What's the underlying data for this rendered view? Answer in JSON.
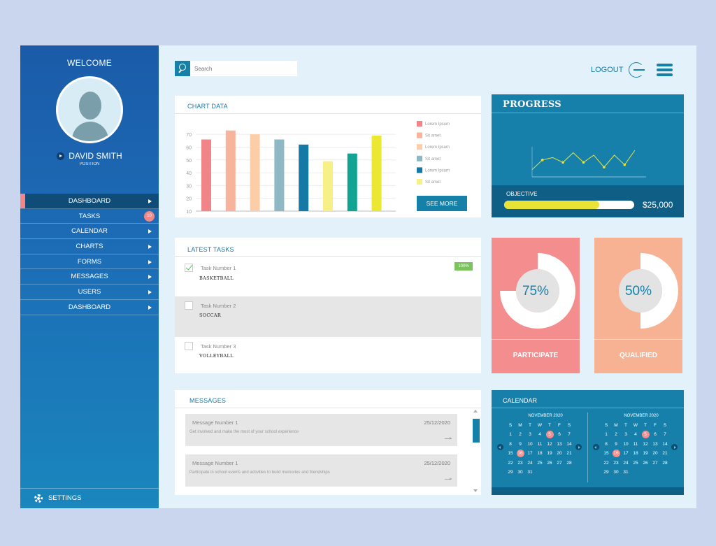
{
  "sidebar": {
    "welcome": "WELCOME",
    "user_name": "DAVID SMITH",
    "user_position": "POSITION",
    "items": [
      {
        "label": "DASHBOARD",
        "active": true
      },
      {
        "label": "TASKS",
        "badge": "10"
      },
      {
        "label": "CALENDAR"
      },
      {
        "label": "CHARTS"
      },
      {
        "label": "FORMS"
      },
      {
        "label": "MESSAGES"
      },
      {
        "label": "USERS"
      },
      {
        "label": "DASHBOARD"
      }
    ],
    "settings_label": "SETTINGS"
  },
  "topbar": {
    "search_placeholder": "Search",
    "logout_label": "LOGOUT"
  },
  "chart_card": {
    "title": "CHART DATA",
    "see_more_label": "SEE MORE"
  },
  "chart_data": {
    "type": "bar",
    "categories": [
      "",
      "",
      "",
      "",
      "",
      "",
      "",
      ""
    ],
    "values": [
      66,
      73,
      70,
      66,
      62,
      49,
      55,
      69
    ],
    "bar_colors": [
      "#f08486",
      "#f7b39b",
      "#fbcea8",
      "#8eb8c3",
      "#1479a5",
      "#f7f087",
      "#11a493",
      "#ece733"
    ],
    "yticks": [
      10,
      20,
      30,
      40,
      50,
      60,
      70
    ],
    "ylim": [
      10,
      75
    ],
    "legend": [
      {
        "name": "Lorem Ipsum",
        "color": "#f08486"
      },
      {
        "name": "Sit amet",
        "color": "#f7b39b"
      },
      {
        "name": "Lorem Ipsum",
        "color": "#fbcea8"
      },
      {
        "name": "Sit amet",
        "color": "#8eb8c3"
      },
      {
        "name": "Lorem Ipsum",
        "color": "#1479a5"
      },
      {
        "name": "Sit amet",
        "color": "#f7f087"
      }
    ],
    "grid": true,
    "legend_position": "right"
  },
  "progress": {
    "title": "PROGRESS",
    "line_values": [
      3,
      7,
      8,
      6,
      10,
      6,
      9,
      4,
      9,
      5,
      11
    ],
    "line_color": "#e8e336",
    "objective_label": "OBJECTIVE",
    "objective_fraction": 0.73,
    "objective_amount": "$25,000"
  },
  "tasks": {
    "title": "LATEST TASKS",
    "items": [
      {
        "name": "Task Number 1",
        "sub": "BASKETBALL",
        "checked": true,
        "badge": "100%"
      },
      {
        "name": "Task Number 2",
        "sub": "SOCCAR",
        "checked": false
      },
      {
        "name": "Task Number 3",
        "sub": "VOLLEYBALL",
        "checked": false
      }
    ]
  },
  "stats": {
    "participate": {
      "percent": "75%",
      "fraction": 0.75,
      "label": "PARTICIPATE"
    },
    "qualified": {
      "percent": "50%",
      "fraction": 0.5,
      "label": "QUALIFIED"
    }
  },
  "messages": {
    "title": "MESSAGES",
    "items": [
      {
        "title": "Message Number 1",
        "date": "25/12/2020",
        "body": "Get involved and make the most of your school experience"
      },
      {
        "title": "Message Number 1",
        "date": "25/12/2020",
        "body": "Participate in school events and activities to build memories and friendships"
      }
    ]
  },
  "calendar": {
    "title": "CALENDAR",
    "months": [
      {
        "name": "NOVEMBER 2020",
        "weekdays": [
          "S",
          "M",
          "T",
          "W",
          "T",
          "F",
          "S"
        ],
        "start_day": 0,
        "days": 31,
        "highlights": [
          5,
          16
        ]
      },
      {
        "name": "NOVEMBER 2020",
        "weekdays": [
          "S",
          "M",
          "T",
          "W",
          "T",
          "F",
          "S"
        ],
        "start_day": 0,
        "days": 31,
        "highlights": [
          5,
          16
        ]
      }
    ]
  },
  "colors": {
    "accent": "#1580a8",
    "sidebar_top": "#1b5ba8",
    "participate": "#f48d8e",
    "qualified": "#f6b293",
    "highlight": "#f48d8e"
  }
}
